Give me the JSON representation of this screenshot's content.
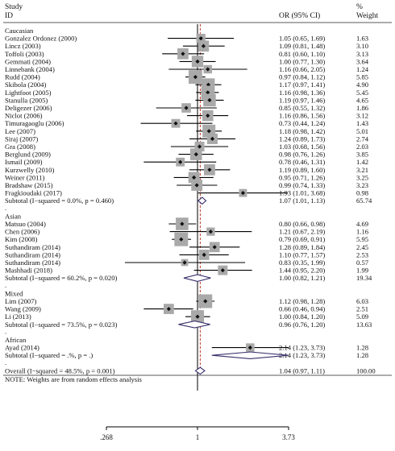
{
  "chart_data": {
    "type": "forest",
    "headers": {
      "study_line1": "Study",
      "study_line2": "ID",
      "or": "OR (95% CI)",
      "weight_line1": "%",
      "weight_line2": "Weight"
    },
    "axis": {
      "scale": "log",
      "null_value": 1,
      "overall_line": 1.04,
      "ticks": [
        {
          "value": 0.268,
          "label": ".268"
        },
        {
          "value": 1,
          "label": "1"
        },
        {
          "value": 3.73,
          "label": "3.73"
        }
      ]
    },
    "groups": [
      {
        "name": "Caucasian",
        "studies": [
          {
            "id": "Gonzalez Ordonez (2000)",
            "or": 1.05,
            "lo": 0.65,
            "hi": 1.69,
            "ci": "1.05 (0.65, 1.69)",
            "weight": "1.63"
          },
          {
            "id": "Lincz (2003)",
            "or": 1.09,
            "lo": 0.81,
            "hi": 1.48,
            "ci": "1.09 (0.81, 1.48)",
            "weight": "3.10"
          },
          {
            "id": "Toffoli (2003)",
            "or": 0.81,
            "lo": 0.6,
            "hi": 1.1,
            "ci": "0.81 (0.60, 1.10)",
            "weight": "3.13"
          },
          {
            "id": "Gemmati (2004)",
            "or": 1.0,
            "lo": 0.77,
            "hi": 1.3,
            "ci": "1.00 (0.77, 1.30)",
            "weight": "3.64"
          },
          {
            "id": "Linnebank (2004)",
            "or": 1.16,
            "lo": 0.66,
            "hi": 2.05,
            "ci": "1.16 (0.66, 2.05)",
            "weight": "1.24"
          },
          {
            "id": "Rudd (2004)",
            "or": 0.97,
            "lo": 0.84,
            "hi": 1.12,
            "ci": "0.97 (0.84, 1.12)",
            "weight": "5.85"
          },
          {
            "id": "Skibola (2004)",
            "or": 1.17,
            "lo": 0.97,
            "hi": 1.41,
            "ci": "1.17 (0.97, 1.41)",
            "weight": "4.90"
          },
          {
            "id": "Lightfoot (2005)",
            "or": 1.16,
            "lo": 0.98,
            "hi": 1.36,
            "ci": "1.16 (0.98, 1.36)",
            "weight": "5.45"
          },
          {
            "id": "Stanulla (2005)",
            "or": 1.19,
            "lo": 0.97,
            "hi": 1.46,
            "ci": "1.19 (0.97, 1.46)",
            "weight": "4.65"
          },
          {
            "id": "Deligezer (2006)",
            "or": 0.85,
            "lo": 0.55,
            "hi": 1.32,
            "ci": "0.85 (0.55, 1.32)",
            "weight": "1.86"
          },
          {
            "id": "Niclot (2006)",
            "or": 1.16,
            "lo": 0.86,
            "hi": 1.56,
            "ci": "1.16 (0.86, 1.56)",
            "weight": "3.12"
          },
          {
            "id": "Timuragaoglu (2006)",
            "or": 0.73,
            "lo": 0.44,
            "hi": 1.24,
            "ci": "0.73 (0.44, 1.24)",
            "weight": "1.43"
          },
          {
            "id": "Lee (2007)",
            "or": 1.18,
            "lo": 0.98,
            "hi": 1.42,
            "ci": "1.18 (0.98, 1.42)",
            "weight": "5.01"
          },
          {
            "id": "Siraj  (2007)",
            "or": 1.24,
            "lo": 0.89,
            "hi": 1.73,
            "ci": "1.24 (0.89, 1.73)",
            "weight": "2.74"
          },
          {
            "id": "Gra (2008)",
            "or": 1.03,
            "lo": 0.68,
            "hi": 1.56,
            "ci": "1.03 (0.68, 1.56)",
            "weight": "2.03"
          },
          {
            "id": "Berglund (2009)",
            "or": 0.98,
            "lo": 0.76,
            "hi": 1.26,
            "ci": "0.98 (0.76, 1.26)",
            "weight": "3.85"
          },
          {
            "id": "Ismail (2009)",
            "or": 0.78,
            "lo": 0.46,
            "hi": 1.31,
            "ci": "0.78 (0.46, 1.31)",
            "weight": "1.42"
          },
          {
            "id": "Kurzwelly (2010)",
            "or": 1.19,
            "lo": 0.89,
            "hi": 1.6,
            "ci": "1.19 (0.89, 1.60)",
            "weight": "3.21"
          },
          {
            "id": "Weiner (2011)",
            "or": 0.95,
            "lo": 0.71,
            "hi": 1.26,
            "ci": "0.95 (0.71, 1.26)",
            "weight": "3.25"
          },
          {
            "id": "Bradshaw (2015)",
            "or": 0.99,
            "lo": 0.74,
            "hi": 1.33,
            "ci": "0.99 (0.74, 1.33)",
            "weight": "3.23"
          },
          {
            "id": "Fragkioudaki (2017)",
            "or": 1.93,
            "lo": 1.01,
            "hi": 3.68,
            "ci": "1.93 (1.01, 3.68)",
            "weight": "0.98"
          }
        ],
        "subtotal": {
          "label": "Subtotal  (I−squared = 0.0%, p = 0.460)",
          "or": 1.07,
          "lo": 1.01,
          "hi": 1.13,
          "ci": "1.07 (1.01, 1.13)",
          "weight": "65.74"
        }
      },
      {
        "name": "Asian",
        "studies": [
          {
            "id": "Matsuo (2004)",
            "or": 0.8,
            "lo": 0.66,
            "hi": 0.98,
            "ci": "0.80 (0.66, 0.98)",
            "weight": "4.69"
          },
          {
            "id": "Chen (2006)",
            "or": 1.21,
            "lo": 0.67,
            "hi": 2.19,
            "ci": "1.21 (0.67, 2.19)",
            "weight": "1.16"
          },
          {
            "id": "Kim (2008)",
            "or": 0.79,
            "lo": 0.69,
            "hi": 0.91,
            "ci": "0.79 (0.69, 0.91)",
            "weight": "5.95"
          },
          {
            "id": "Suthandiram (2014)",
            "or": 1.28,
            "lo": 0.89,
            "hi": 1.84,
            "ci": "1.28 (0.89, 1.84)",
            "weight": "2.45"
          },
          {
            "id": "Suthandiram (2014)",
            "or": 1.1,
            "lo": 0.77,
            "hi": 1.57,
            "ci": "1.10 (0.77, 1.57)",
            "weight": "2.53"
          },
          {
            "id": "Suthandiram (2014)",
            "or": 0.83,
            "lo": 0.35,
            "hi": 1.99,
            "ci": "0.83 (0.35, 1.99)",
            "weight": "0.57"
          },
          {
            "id": "Mashhadi (2018)",
            "or": 1.44,
            "lo": 0.95,
            "hi": 2.2,
            "ci": "1.44 (0.95, 2.20)",
            "weight": "1.99"
          }
        ],
        "subtotal": {
          "label": "Subtotal  (I−squared = 60.2%, p = 0.020)",
          "or": 1.0,
          "lo": 0.82,
          "hi": 1.21,
          "ci": "1.00 (0.82, 1.21)",
          "weight": "19.34"
        }
      },
      {
        "name": "Mixed",
        "studies": [
          {
            "id": "Lim (2007)",
            "or": 1.12,
            "lo": 0.98,
            "hi": 1.28,
            "ci": "1.12 (0.98, 1.28)",
            "weight": "6.03"
          },
          {
            "id": "Wang (2009)",
            "or": 0.66,
            "lo": 0.46,
            "hi": 0.94,
            "ci": "0.66 (0.46, 0.94)",
            "weight": "2.51"
          },
          {
            "id": "Li (2013)",
            "or": 1.0,
            "lo": 0.84,
            "hi": 1.2,
            "ci": "1.00 (0.84, 1.20)",
            "weight": "5.09"
          }
        ],
        "subtotal": {
          "label": "Subtotal  (I−squared = 73.5%, p = 0.023)",
          "or": 0.96,
          "lo": 0.76,
          "hi": 1.2,
          "ci": "0.96 (0.76, 1.20)",
          "weight": "13.63"
        }
      },
      {
        "name": "African",
        "studies": [
          {
            "id": "Ayad (2014)",
            "or": 2.14,
            "lo": 1.23,
            "hi": 3.73,
            "ci": "2.14 (1.23, 3.73)",
            "weight": "1.28"
          }
        ],
        "subtotal": {
          "label": "Subtotal  (I−squared = .%, p = .)",
          "or": 2.14,
          "lo": 1.23,
          "hi": 3.73,
          "ci": "2.14 (1.23, 3.73)",
          "weight": "1.28"
        }
      }
    ],
    "overall": {
      "label": "Overall  (I−squared = 48.5%, p = 0.001)",
      "or": 1.04,
      "lo": 0.97,
      "hi": 1.11,
      "ci": "1.04 (0.97, 1.11)",
      "weight": "100.00"
    },
    "note": "NOTE: Weights are from random effects analysis"
  }
}
